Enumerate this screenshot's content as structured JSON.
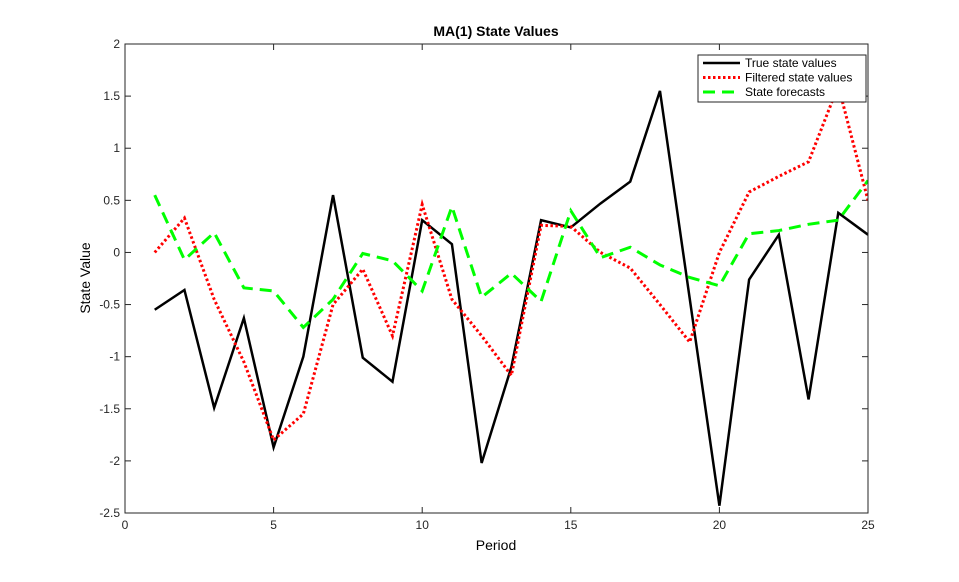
{
  "chart_data": {
    "type": "line",
    "title": "MA(1) State Values",
    "xlabel": "Period",
    "ylabel": "State Value",
    "xlim": [
      0,
      25
    ],
    "ylim": [
      -2.5,
      2
    ],
    "xticks": [
      0,
      5,
      10,
      15,
      20,
      25
    ],
    "yticks": [
      -2.5,
      -2,
      -1.5,
      -1,
      -0.5,
      0,
      0.5,
      1,
      1.5,
      2
    ],
    "legend_position": "top-right",
    "x": [
      1,
      2,
      3,
      4,
      5,
      6,
      7,
      8,
      9,
      10,
      11,
      12,
      13,
      14,
      15,
      16,
      17,
      18,
      19,
      20,
      21,
      22,
      23,
      24,
      25
    ],
    "series": [
      {
        "name": "True state values",
        "color": "#000000",
        "style": "solid",
        "values": [
          -0.55,
          -0.36,
          -1.49,
          -0.63,
          -1.87,
          -1.0,
          0.55,
          -1.01,
          -1.24,
          0.31,
          0.08,
          -2.02,
          -1.1,
          0.31,
          0.24,
          0.47,
          0.68,
          1.55,
          -0.44,
          -2.43,
          -0.26,
          0.17,
          -1.41,
          0.38,
          0.17
        ]
      },
      {
        "name": "Filtered state values",
        "color": "#ff0000",
        "style": "dotted",
        "values": [
          0.0,
          0.33,
          -0.45,
          -1.05,
          -1.8,
          -1.55,
          -0.5,
          -0.16,
          -0.8,
          0.46,
          -0.45,
          -0.8,
          -1.18,
          0.26,
          0.25,
          0.0,
          -0.15,
          -0.5,
          -0.86,
          0.0,
          0.58,
          0.73,
          0.87,
          1.6,
          0.5
        ]
      },
      {
        "name": "State forecasts",
        "color": "#00ff00",
        "style": "dashed",
        "values": [
          0.55,
          -0.07,
          0.19,
          -0.34,
          -0.37,
          -0.72,
          -0.45,
          -0.01,
          -0.08,
          -0.37,
          0.44,
          -0.43,
          -0.2,
          -0.47,
          0.4,
          -0.05,
          0.05,
          -0.12,
          -0.24,
          -0.32,
          0.18,
          0.21,
          0.27,
          0.31,
          0.69
        ]
      }
    ]
  }
}
